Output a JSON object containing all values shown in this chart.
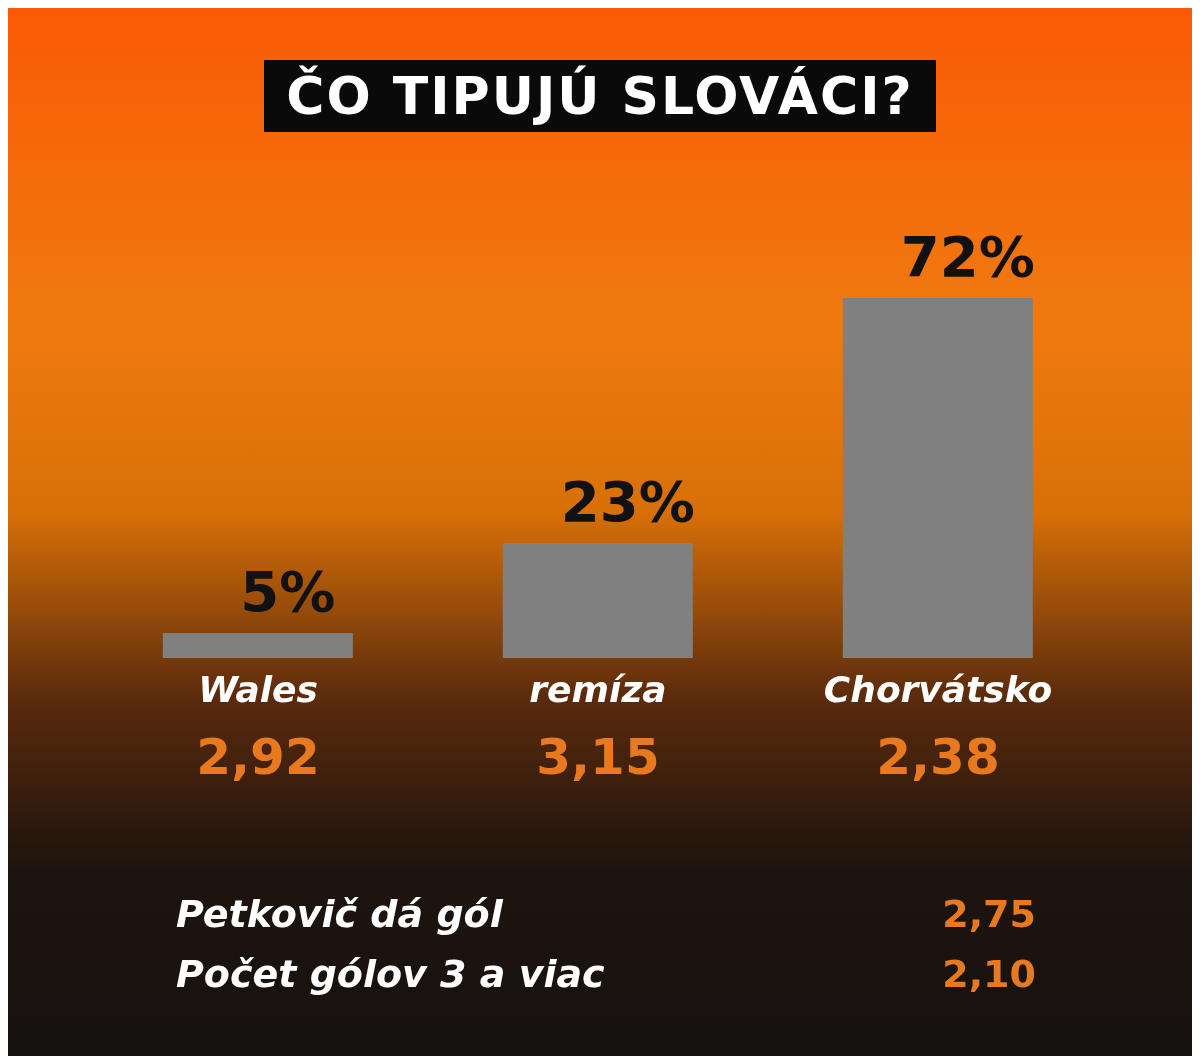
{
  "chart_data": {
    "type": "bar",
    "title": "ČO TIPUJÚ SLOVÁCI?",
    "categories": [
      "Wales",
      "remíza",
      "Chorvátsko"
    ],
    "values": [
      5,
      23,
      72
    ],
    "value_labels": [
      "5%",
      "23%",
      "72%"
    ],
    "color": "#808080",
    "tick_labels": "x",
    "grid": false,
    "legend": false,
    "annotations": [
      "2,92",
      "3,15",
      "2,38",
      "Petkovič dá gól",
      "2,75",
      "Počet gólov 3 a viac",
      "2,10"
    ]
  }
}
